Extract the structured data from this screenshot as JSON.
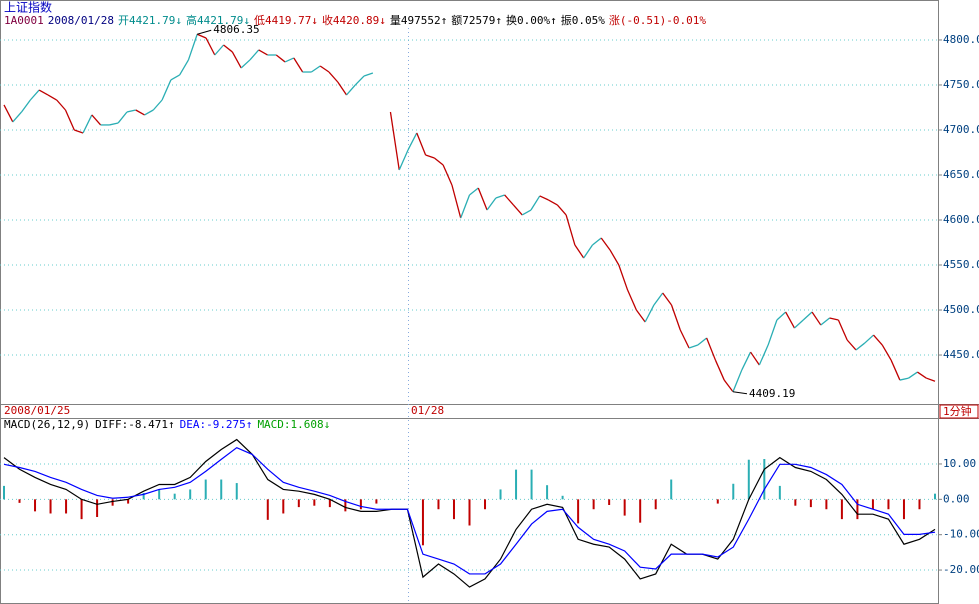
{
  "header": {
    "title": "上证指数",
    "fields": [
      {
        "text": "1A0001",
        "color": "#800040"
      },
      {
        "text": "2008/01/28",
        "color": "#000080"
      },
      {
        "text": "开4421.79↓",
        "color": "#008c8c"
      },
      {
        "text": "高4421.79↓",
        "color": "#008c8c"
      },
      {
        "text": "低4419.77↓",
        "color": "#c00000"
      },
      {
        "text": "收4420.89↓",
        "color": "#c00000"
      },
      {
        "text": "量497552↑",
        "color": "#000000"
      },
      {
        "text": "额72579↑",
        "color": "#000000"
      },
      {
        "text": "换0.00%↑",
        "color": "#000000"
      },
      {
        "text": "振0.05%",
        "color": "#000000"
      },
      {
        "text": "涨(-0.51)-0.01%",
        "color": "#c00000"
      }
    ]
  },
  "chart_data": [
    {
      "type": "line",
      "values": [
        4727.8,
        4708.9,
        4720,
        4733.3,
        4744.4,
        4738.9,
        4733.3,
        4722.2,
        4700,
        4696.7,
        4716.7,
        4705.6,
        4705.6,
        4707.8,
        4720,
        4722.2,
        4716.7,
        4722.2,
        4733.3,
        4755.6,
        4761.1,
        4777.8,
        4806.35,
        4802.2,
        4783.3,
        4794.4,
        4786.7,
        4768.9,
        4777.8,
        4788.9,
        4783.3,
        4783.3,
        4775.6,
        4780,
        4764.4,
        4764.4,
        4771.1,
        4764.4,
        4753.3,
        4738.9,
        4750,
        4760,
        4763.3,
        null,
        4720,
        4655.6,
        4677.8,
        4696.7,
        4672.2,
        4668.9,
        4661.1,
        4638.9,
        4602.2,
        4627.8,
        4635.6,
        4611.1,
        4624.4,
        4627.8,
        4616.7,
        4605.6,
        4611.1,
        4626.7,
        4622.2,
        4616.7,
        4605.6,
        4572.2,
        4557.8,
        4572.2,
        4580,
        4566.7,
        4550,
        4522.2,
        4500,
        4486.7,
        4505.6,
        4518.9,
        4505.6,
        4477.8,
        4457.8,
        4461.1,
        4468.9,
        4444.4,
        4422.2,
        4409.19,
        4433.3,
        4453.3,
        4438.9,
        4461.1,
        4488.9,
        4497.8,
        4480,
        4488.9,
        4497.8,
        4483.3,
        4491.1,
        4488.9,
        4466.7,
        4455.6,
        4463.3,
        4472.2,
        4461.1,
        4444.4,
        4422.2,
        4424.4,
        4431.1,
        4424.4,
        4420.9
      ],
      "up_color": "#2aaeb4",
      "down_color": "#c00000",
      "annotations": [
        4806.35,
        4409.19
      ],
      "ylim": [
        4395.6,
        4824.4
      ],
      "yticks": [
        {
          "value": 4450,
          "label": "4450.00"
        },
        {
          "value": 4500,
          "label": "4500.00"
        },
        {
          "value": 4550,
          "label": "4550.00"
        },
        {
          "value": 4600,
          "label": "4600.00"
        },
        {
          "value": 4650,
          "label": "4650.00"
        },
        {
          "value": 4700,
          "label": "4700.00"
        },
        {
          "value": 4750,
          "label": "4750.00"
        },
        {
          "value": 4800,
          "label": "4800.00"
        }
      ],
      "grid": true,
      "xlabels": [
        "2008/01/25",
        "01/28"
      ],
      "period": "1分钟"
    },
    {
      "type": "macd",
      "title": "MACD(26,12,9)",
      "series": [
        {
          "legend": "DIFF:-8.471↑",
          "color": "#000000",
          "values": [
            11.8,
            8.5,
            6.2,
            4.2,
            2.8,
            0,
            -1.4,
            -0.6,
            0,
            2.3,
            4.2,
            4.2,
            6.2,
            10.7,
            14.1,
            16.9,
            12.7,
            5.6,
            2.8,
            2.3,
            1.4,
            0,
            -2.3,
            -3.4,
            -3.4,
            -2.8,
            -2.8,
            -22,
            -18.3,
            -21.1,
            -24.8,
            -22.5,
            -16.9,
            -8.5,
            -2.8,
            -1.4,
            -2.3,
            -11.3,
            -12.7,
            -13.5,
            -16.9,
            -22.5,
            -21.1,
            -12.7,
            -15.5,
            -15.5,
            -16.9,
            -11.3,
            0,
            8.5,
            11.8,
            9,
            7.9,
            5.6,
            1.4,
            -4.2,
            -4.2,
            -5.6,
            -12.7,
            -11.3,
            -8.5
          ]
        },
        {
          "legend": "DEA:-9.275↑",
          "color": "#0000ff",
          "values": [
            9.9,
            9,
            7.9,
            6.2,
            4.8,
            2.8,
            1.1,
            0.3,
            0.6,
            1.4,
            2.8,
            3.4,
            4.8,
            7.9,
            11.3,
            14.6,
            12.7,
            8.5,
            4.8,
            3.4,
            2.3,
            1.1,
            -0.6,
            -2,
            -2.8,
            -2.8,
            -2.8,
            -15.5,
            -16.9,
            -18.3,
            -21.1,
            -21.1,
            -18.3,
            -12.7,
            -7,
            -3.4,
            -2.8,
            -7.9,
            -11.3,
            -12.7,
            -14.6,
            -19.2,
            -19.7,
            -15.5,
            -15.5,
            -15.5,
            -16.3,
            -13.5,
            -5.6,
            2.8,
            9.9,
            9.9,
            9,
            7,
            4.2,
            -1.4,
            -2.8,
            -4.2,
            -9.9,
            -9.9,
            -9.3
          ]
        },
        {
          "legend": "MACD:1.608↓",
          "color": "#00a000",
          "bar": true,
          "up_color": "#2aaeb4",
          "down_color": "#c00000",
          "values": [
            3.8,
            -1,
            -3.4,
            -4,
            -4,
            -5.6,
            -5,
            -1.8,
            -1.2,
            1.8,
            2.8,
            1.6,
            2.8,
            5.6,
            5.6,
            4.6,
            0,
            -5.8,
            -4,
            -2.2,
            -1.8,
            -2.2,
            -3.4,
            -2.8,
            -1.2,
            0,
            0,
            -13,
            -2.8,
            -5.6,
            -7.4,
            -2.8,
            2.8,
            8.4,
            8.4,
            4,
            1,
            -6.8,
            -2.8,
            -1.6,
            -4.6,
            -6.6,
            -2.8,
            5.6,
            0,
            0,
            -1.2,
            4.4,
            11.2,
            11.4,
            3.8,
            -1.8,
            -2.2,
            -2.8,
            -5.6,
            -5.6,
            -2.8,
            -2.8,
            -5.6,
            -2.8,
            1.6
          ]
        }
      ],
      "ylim": [
        -29.6,
        23
      ],
      "yticks": [
        {
          "value": -20,
          "label": "-20.00"
        },
        {
          "value": -10,
          "label": "-10.00"
        },
        {
          "value": 0,
          "label": "0.00"
        },
        {
          "value": 10,
          "label": "10.00"
        }
      ],
      "grid": true
    }
  ]
}
